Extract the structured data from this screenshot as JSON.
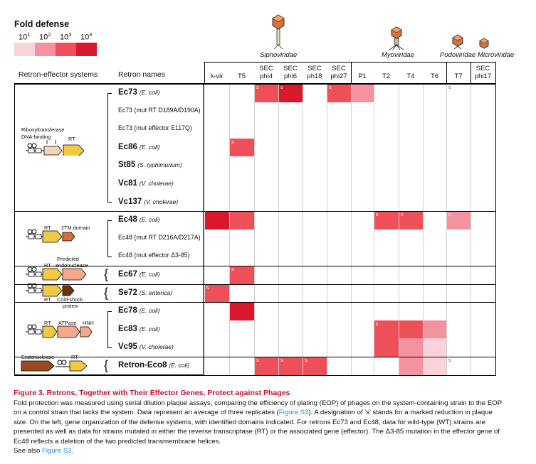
{
  "legend": {
    "title": "Fold defense",
    "levels": [
      "10",
      "10",
      "10",
      "10"
    ],
    "exponents": [
      "1",
      "2",
      "3",
      "4"
    ],
    "colors": [
      "#f9d3d9",
      "#f3939f",
      "#ee5059",
      "#d9182c"
    ]
  },
  "families": {
    "siphoviridae": "Siphoviridae",
    "myoviridae": "Myoviridae",
    "podoviridae": "Podoviridae",
    "microviridae": "Microviridae"
  },
  "headers": {
    "systems": "Retron-effector systems",
    "names": "Retron names"
  },
  "phages": [
    {
      "l1": "",
      "l2": "λ-vir"
    },
    {
      "l1": "",
      "l2": "T5"
    },
    {
      "l1": "SEC",
      "l2": "phi4"
    },
    {
      "l1": "SEC",
      "l2": "phi6"
    },
    {
      "l1": "SEC",
      "l2": "ph18"
    },
    {
      "l1": "SEC",
      "l2": "phi27"
    },
    {
      "l1": "",
      "l2": "P1"
    },
    {
      "l1": "",
      "l2": "T2"
    },
    {
      "l1": "",
      "l2": "T4"
    },
    {
      "l1": "",
      "l2": "T6"
    },
    {
      "l1": "",
      "l2": "T7"
    },
    {
      "l1": "SEC",
      "l2": "phi17"
    }
  ],
  "rows": [
    {
      "main": "Ec73",
      "org": "(E. coli)",
      "bold": true
    },
    {
      "main": "Ec73 (mut RT D189A/D190A)",
      "org": "",
      "bold": false
    },
    {
      "main": "Ec73 (mut effector E117Q)",
      "org": "",
      "bold": false
    },
    {
      "main": "Ec86",
      "org": "(E. coli)",
      "bold": true
    },
    {
      "main": "St85",
      "org": "(S. typhimurium)",
      "bold": true
    },
    {
      "main": "Vc81",
      "org": "(V. cholerae)",
      "bold": true
    },
    {
      "main": "Vc137",
      "org": "(V. cholerae)",
      "bold": true
    },
    {
      "main": "Ec48",
      "org": "(E. coli)",
      "bold": true
    },
    {
      "main": "Ec48 (mut RT D216A/D217A)",
      "org": "",
      "bold": false
    },
    {
      "main": "Ec48 (mut effector Δ3-85)",
      "org": "",
      "bold": false
    },
    {
      "main": "Ec67",
      "org": "(E. coli)",
      "bold": true
    },
    {
      "main": "Se72",
      "org": "(S. enterica)",
      "bold": true
    },
    {
      "main": "Ec78",
      "org": "(E. coli)",
      "bold": true
    },
    {
      "main": "Ec83",
      "org": "(E. coli)",
      "bold": true
    },
    {
      "main": "Vc95",
      "org": "(V. cholerae)",
      "bold": true
    },
    {
      "main": "Retron-Eco8",
      "org": "(E. coli)",
      "bold": true
    }
  ],
  "cells": [
    {
      "r": 0,
      "c": 2,
      "level": 3,
      "s": true
    },
    {
      "r": 0,
      "c": 3,
      "level": 4,
      "s": true
    },
    {
      "r": 0,
      "c": 5,
      "level": 3,
      "s": true
    },
    {
      "r": 0,
      "c": 6,
      "level": 2,
      "s": false
    },
    {
      "r": 0,
      "c": 10,
      "level": 0,
      "s": true
    },
    {
      "r": 3,
      "c": 1,
      "level": 3,
      "s": true
    },
    {
      "r": 7,
      "c": 0,
      "level": 4,
      "s": false
    },
    {
      "r": 7,
      "c": 1,
      "level": 3,
      "s": false
    },
    {
      "r": 7,
      "c": 7,
      "level": 3,
      "s": true
    },
    {
      "r": 7,
      "c": 8,
      "level": 3,
      "s": true
    },
    {
      "r": 7,
      "c": 10,
      "level": 2,
      "s": true
    },
    {
      "r": 10,
      "c": 1,
      "level": 3,
      "s": true
    },
    {
      "r": 11,
      "c": 0,
      "level": 3,
      "s": true
    },
    {
      "r": 12,
      "c": 1,
      "level": 4,
      "s": false
    },
    {
      "r": 13,
      "c": 7,
      "level": 3,
      "s": true
    },
    {
      "r": 13,
      "c": 8,
      "level": 3,
      "s": false
    },
    {
      "r": 13,
      "c": 9,
      "level": 2,
      "s": false
    },
    {
      "r": 14,
      "c": 7,
      "level": 3,
      "s": false
    },
    {
      "r": 14,
      "c": 8,
      "level": 2,
      "s": false
    },
    {
      "r": 14,
      "c": 9,
      "level": 1,
      "s": false
    },
    {
      "r": 15,
      "c": 2,
      "level": 3,
      "s": true
    },
    {
      "r": 15,
      "c": 3,
      "level": 3,
      "s": true
    },
    {
      "r": 15,
      "c": 4,
      "level": 3,
      "s": true
    },
    {
      "r": 15,
      "c": 8,
      "level": 2,
      "s": false
    },
    {
      "r": 15,
      "c": 9,
      "level": 1,
      "s": false
    },
    {
      "r": 15,
      "c": 10,
      "level": 0,
      "s": true
    }
  ],
  "s_mark": "s",
  "gene_labels": {
    "g1_a": "Ribosyltransferase",
    "g1_b": "DNA-binding",
    "g1_c": "RT",
    "g2_a": "RT",
    "g2_b": "2TM domain",
    "g3_a": "Predicted",
    "g3_b": "endonuclease",
    "g3_c": "RT",
    "g4_a": "RT",
    "g4_b": "Cold-shock",
    "g4_c": "protein",
    "g5_a": "RT",
    "g5_b": "ATPase",
    "g5_c": "HNH",
    "g6_a": "Endonuclease",
    "g6_b": "RT"
  },
  "caption": {
    "title": "Figure 3. Retrons, Together with Their Effector Genes, Protect against Phages",
    "p1": "Fold protection was measured using serial dilution plaque assays, comparing the efficiency of plating (EOP) of phages on the system-containing strain to the EOP",
    "p2": "on a control strain that lacks the system. Data represent an average of three replicates (",
    "p2_link": "Figure S3",
    "p2_end": "). A designation of 's' stands for a marked reduction in plaque",
    "p3": "size. On the left, gene organization of the defense systems, with identified domains indicated. For retrons Ec73 and Ec48, data for wild-type (WT) strains are",
    "p4": "presented as well as data for strains mutated in either the reverse transcriptase (RT) or the associated gene (effector). The Δ3-85 mutation in the effector gene of",
    "p5": "Ec48 reflects a deletion of the two predicted transmembrane helices.",
    "see_also": "See also ",
    "see_link": "Figure S3",
    "see_end": "."
  }
}
